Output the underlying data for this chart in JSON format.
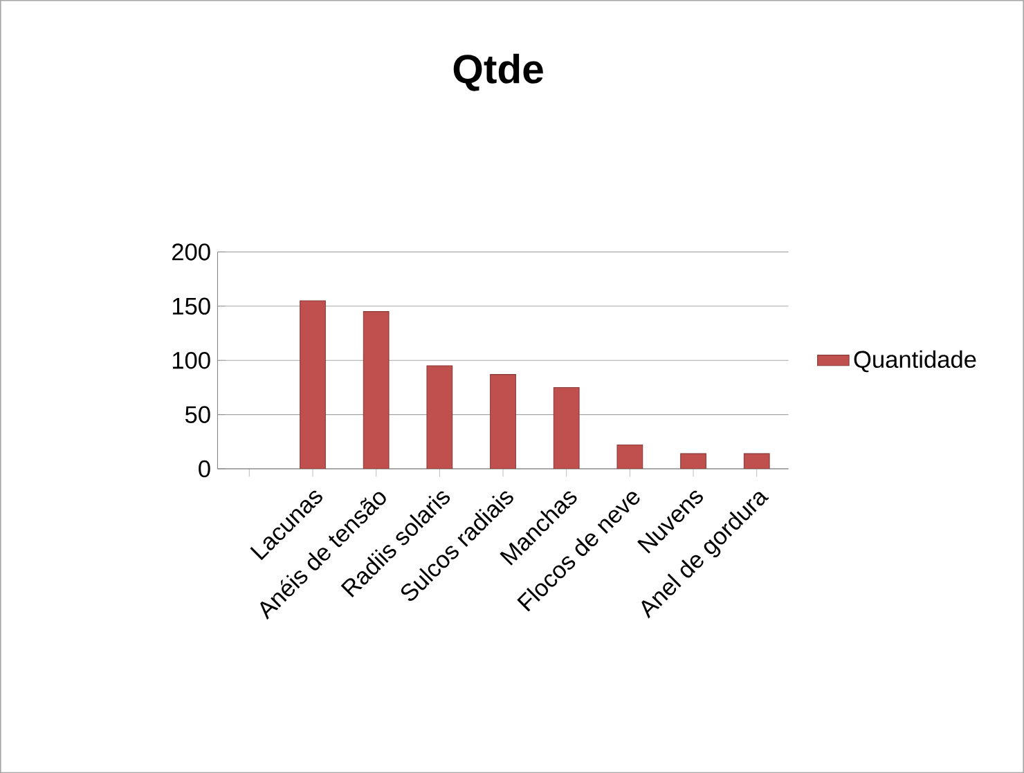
{
  "chart_data": {
    "type": "bar",
    "title": "Qtde",
    "categories": [
      null,
      "Lacunas",
      "Anéis de tensão",
      "Radiis solaris",
      "Sulcos radiais",
      "Manchas",
      "Flocos de neve",
      "Nuvens",
      "Anel de gordura"
    ],
    "series": [
      {
        "name": "Quantidade",
        "color": "#c0504d",
        "values": [
          null,
          155,
          145,
          95,
          87,
          75,
          22,
          14,
          14
        ]
      }
    ],
    "ylim": [
      0,
      200
    ],
    "yticks": [
      0,
      50,
      100,
      150,
      200
    ],
    "grid": "y",
    "legend": "right"
  }
}
